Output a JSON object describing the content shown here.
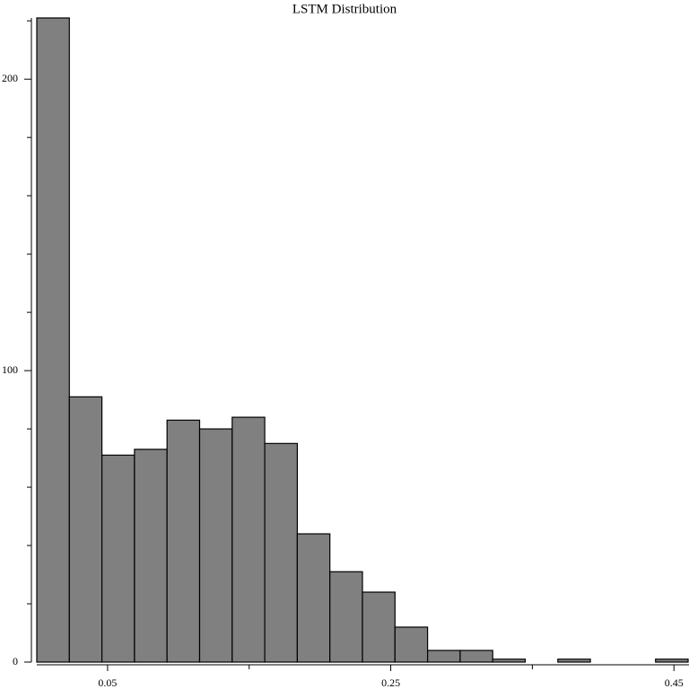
{
  "chart_data": {
    "type": "histogram",
    "title": "LSTM Distribution",
    "bins": [
      0,
      0.023,
      0.046,
      0.069,
      0.092,
      0.115,
      0.138,
      0.161,
      0.184,
      0.207,
      0.23,
      0.253,
      0.276,
      0.299,
      0.322,
      0.345,
      0.368,
      0.391,
      0.414,
      0.437,
      0.46
    ],
    "values": [
      221,
      91,
      71,
      73,
      83,
      80,
      84,
      75,
      44,
      31,
      24,
      12,
      4,
      4,
      1,
      0,
      1,
      0,
      0,
      1
    ],
    "color": "#808080",
    "xlim": [
      0,
      0.46
    ],
    "xticks": [
      0.05,
      0.25,
      0.45
    ],
    "x_minor_ticks": [
      0.15,
      0.35
    ],
    "ylim": [
      0,
      221
    ],
    "yticks": [
      0,
      100,
      200
    ],
    "y_minor_ticks": [
      20,
      40,
      60,
      80,
      120,
      140,
      160,
      180,
      220
    ]
  }
}
